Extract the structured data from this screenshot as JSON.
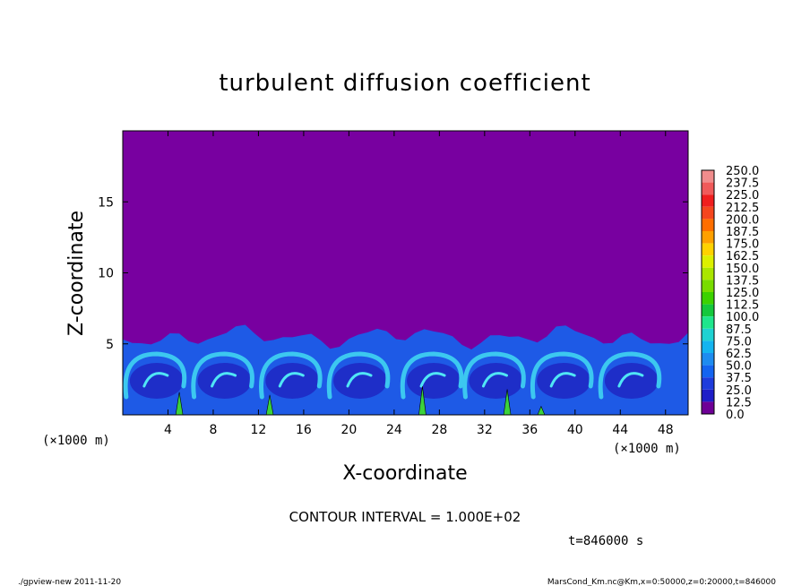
{
  "chart_data": {
    "type": "heatmap",
    "title": "turbulent diffusion coefficient",
    "xlabel": "X-coordinate",
    "ylabel": "Z-coordinate",
    "x_unit_left": "(×1000 m)",
    "x_unit_right": "(×1000 m)",
    "xlim": [
      0,
      50
    ],
    "ylim": [
      0,
      20
    ],
    "x_ticks": [
      4,
      8,
      12,
      16,
      20,
      24,
      28,
      32,
      36,
      40,
      44,
      48
    ],
    "y_ticks": [
      5,
      10,
      15
    ],
    "colorbar": {
      "levels": [
        "250.0",
        "237.5",
        "225.0",
        "212.5",
        "200.0",
        "187.5",
        "175.0",
        "162.5",
        "150.0",
        "137.5",
        "125.0",
        "112.5",
        "100.0",
        "87.5",
        "75.0",
        "62.5",
        "50.0",
        "37.5",
        "25.0",
        "12.5",
        "0.0"
      ],
      "colors": [
        "#f08c8c",
        "#f05a5a",
        "#f01e1e",
        "#f5461e",
        "#ff6e00",
        "#ffa000",
        "#ffd200",
        "#dcf000",
        "#aae600",
        "#78dc00",
        "#3cd200",
        "#14c83c",
        "#1ee68c",
        "#1ed2d2",
        "#14b4f0",
        "#1e8cf0",
        "#1464f0",
        "#1e3cdc",
        "#1e1ec8",
        "#6e0096"
      ]
    },
    "contour_interval": "CONTOUR INTERVAL = 1.000E+02",
    "time_label": "t=846000 s",
    "turbulent_layer_top_km": 5.5,
    "background_color": "#7800a0",
    "green_spikes": [
      {
        "x": 5.0,
        "height": 1.6
      },
      {
        "x": 13.0,
        "height": 1.4
      },
      {
        "x": 26.5,
        "height": 2.0
      },
      {
        "x": 34.0,
        "height": 1.8
      },
      {
        "x": 37.0,
        "height": 0.6
      }
    ]
  },
  "footer": {
    "left": "./gpview-new   2011-11-20",
    "right": "MarsCond_Km.nc@Km,x=0:50000,z=0:20000,t=846000"
  }
}
